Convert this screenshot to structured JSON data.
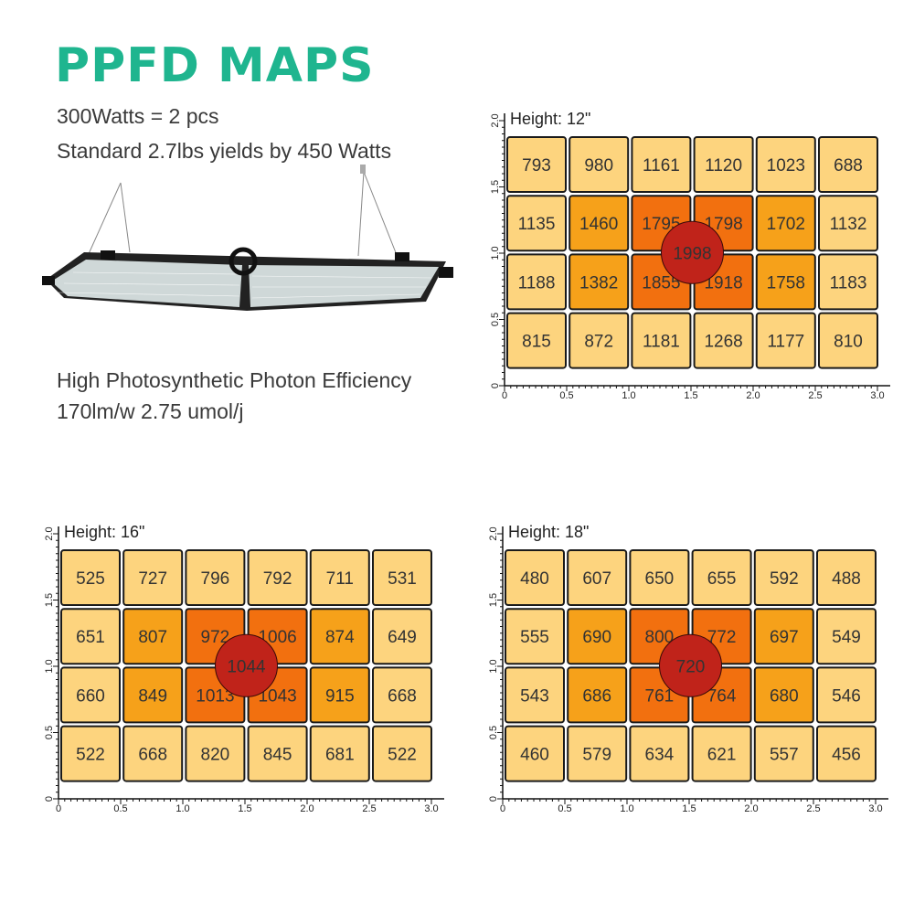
{
  "header": {
    "title": "PPFD MAPS",
    "line1": "300Watts = 2 pcs",
    "line2": "Standard 2.7lbs yields by 450 Watts",
    "line3": "High Photosynthetic Photon Efficiency",
    "line4": "170lm/w 2.75 umol/j"
  },
  "colors": {
    "title": "#1fb58f",
    "low": "#fdd47e",
    "mid": "#f6a11a",
    "high": "#f2700f",
    "peak": "#c0231a"
  },
  "chart_data": [
    {
      "type": "heatmap",
      "title": "Height: 12\"",
      "x_ticks": [
        "0",
        "0.5",
        "1.0",
        "1.5",
        "2.0",
        "2.5",
        "3.0"
      ],
      "y_ticks": [
        "0",
        "0.5",
        "1.0",
        "1.5",
        "2.0"
      ],
      "xlim": [
        0,
        3.0
      ],
      "ylim": [
        0,
        2.0
      ],
      "grid": [
        [
          793,
          980,
          1161,
          1120,
          1023,
          688
        ],
        [
          1135,
          1460,
          1795,
          1798,
          1702,
          1132
        ],
        [
          1188,
          1382,
          1855,
          1918,
          1758,
          1183
        ],
        [
          815,
          872,
          1181,
          1268,
          1177,
          810
        ]
      ],
      "levels": [
        [
          "low",
          "low",
          "low",
          "low",
          "low",
          "low"
        ],
        [
          "low",
          "mid",
          "high",
          "high",
          "mid",
          "low"
        ],
        [
          "low",
          "mid",
          "high",
          "high",
          "mid",
          "low"
        ],
        [
          "low",
          "low",
          "low",
          "low",
          "low",
          "low"
        ]
      ],
      "center_value": 1998
    },
    {
      "type": "heatmap",
      "title": "Height: 16\"",
      "x_ticks": [
        "0",
        "0.5",
        "1.0",
        "1.5",
        "2.0",
        "2.5",
        "3.0"
      ],
      "y_ticks": [
        "0",
        "0.5",
        "1.0",
        "1.5",
        "2.0"
      ],
      "xlim": [
        0,
        3.0
      ],
      "ylim": [
        0,
        2.0
      ],
      "grid": [
        [
          525,
          727,
          796,
          792,
          711,
          531
        ],
        [
          651,
          807,
          972,
          1006,
          874,
          649
        ],
        [
          660,
          849,
          1013,
          1043,
          915,
          668
        ],
        [
          522,
          668,
          820,
          845,
          681,
          522
        ]
      ],
      "levels": [
        [
          "low",
          "low",
          "low",
          "low",
          "low",
          "low"
        ],
        [
          "low",
          "mid",
          "high",
          "high",
          "mid",
          "low"
        ],
        [
          "low",
          "mid",
          "high",
          "high",
          "mid",
          "low"
        ],
        [
          "low",
          "low",
          "low",
          "low",
          "low",
          "low"
        ]
      ],
      "center_value": 1044
    },
    {
      "type": "heatmap",
      "title": "Height: 18\"",
      "x_ticks": [
        "0",
        "0.5",
        "1.0",
        "1.5",
        "2.0",
        "2.5",
        "3.0"
      ],
      "y_ticks": [
        "0",
        "0.5",
        "1.0",
        "1.5",
        "2.0"
      ],
      "xlim": [
        0,
        3.0
      ],
      "ylim": [
        0,
        2.0
      ],
      "grid": [
        [
          480,
          607,
          650,
          655,
          592,
          488
        ],
        [
          555,
          690,
          800,
          772,
          697,
          549
        ],
        [
          543,
          686,
          761,
          764,
          680,
          546
        ],
        [
          460,
          579,
          634,
          621,
          557,
          456
        ]
      ],
      "levels": [
        [
          "low",
          "low",
          "low",
          "low",
          "low",
          "low"
        ],
        [
          "low",
          "mid",
          "high",
          "high",
          "mid",
          "low"
        ],
        [
          "low",
          "mid",
          "high",
          "high",
          "mid",
          "low"
        ],
        [
          "low",
          "low",
          "low",
          "low",
          "low",
          "low"
        ]
      ],
      "center_value": 720
    }
  ]
}
